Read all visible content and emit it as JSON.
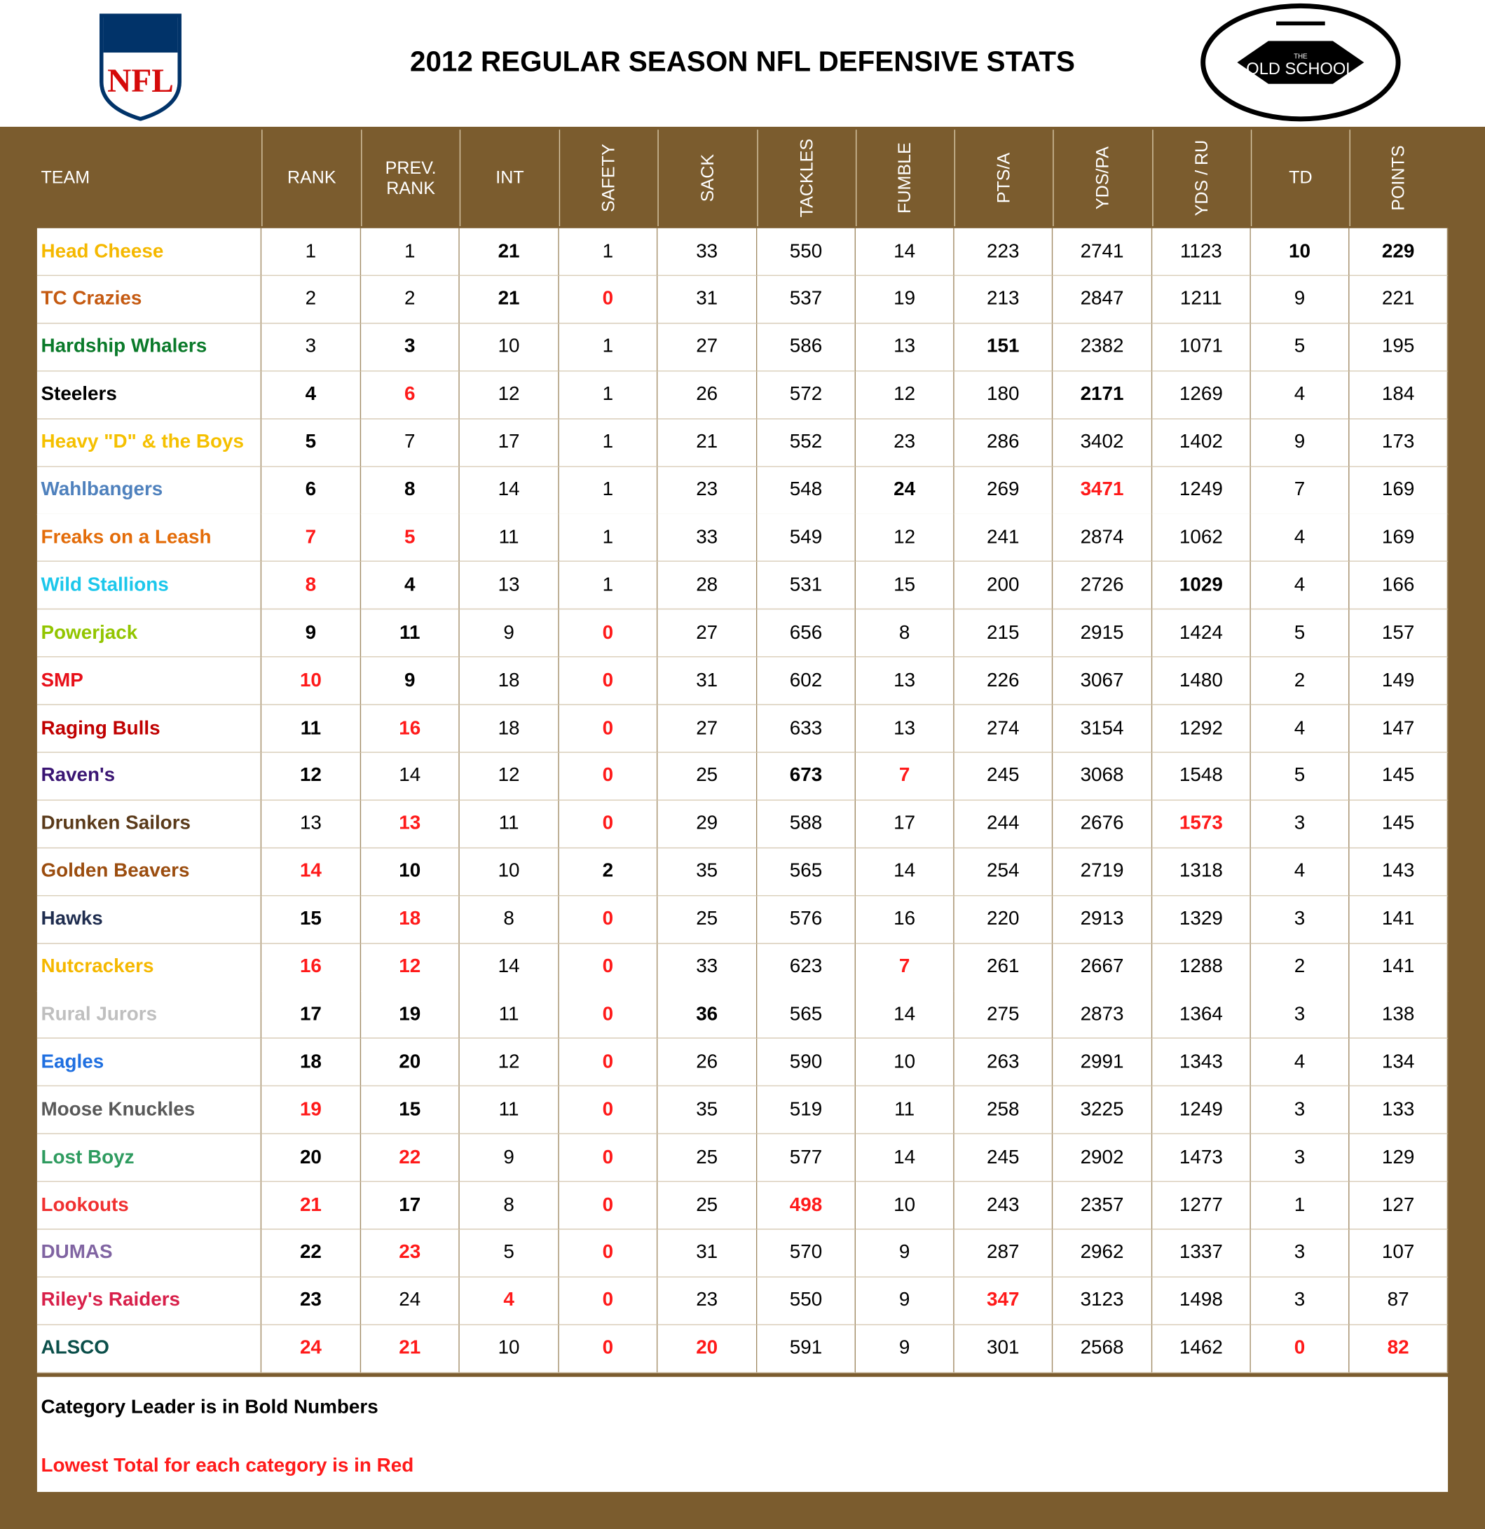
{
  "header": {
    "title": "2012 REGULAR SEASON NFL DEFENSIVE STATS",
    "nfl_logo": "NFL",
    "old_school_top": "THE",
    "old_school": "OLD SCHOOL"
  },
  "table": {
    "columns": [
      "TEAM",
      "RANK",
      "PREV. RANK",
      "INT",
      "SAFETY",
      "SACK",
      "TACKLES",
      "FUMBLE",
      "PTS/A",
      "YDS/PA",
      "YDS / RU",
      "TD",
      "POINTS"
    ],
    "rows": [
      {
        "team": "Head Cheese",
        "team_color": "#f5b800",
        "cells": [
          1,
          1,
          21,
          1,
          33,
          550,
          14,
          223,
          2741,
          1123,
          10,
          229
        ],
        "bold": [
          2,
          10,
          11
        ],
        "red": []
      },
      {
        "team": "TC Crazies",
        "team_color": "#c55a11",
        "cells": [
          2,
          2,
          21,
          0,
          31,
          537,
          19,
          213,
          2847,
          1211,
          9,
          221
        ],
        "bold": [
          2
        ],
        "red": [
          3
        ]
      },
      {
        "team": "Hardship Whalers",
        "team_color": "#0a7a2a",
        "cells": [
          3,
          3,
          10,
          1,
          27,
          586,
          13,
          151,
          2382,
          1071,
          5,
          195
        ],
        "bold": [
          1,
          7
        ],
        "red": []
      },
      {
        "team": "Steelers",
        "team_color": "#000000",
        "cells": [
          4,
          6,
          12,
          1,
          26,
          572,
          12,
          180,
          2171,
          1269,
          4,
          184
        ],
        "bold": [
          0,
          8
        ],
        "red": [
          1
        ]
      },
      {
        "team": "Heavy \"D\" & the Boys",
        "team_color": "#f5c000",
        "cells": [
          5,
          7,
          17,
          1,
          21,
          552,
          23,
          286,
          3402,
          1402,
          9,
          173
        ],
        "bold": [
          0
        ],
        "red": []
      },
      {
        "team": "Wahlbangers",
        "team_color": "#4f81bd",
        "cells": [
          6,
          8,
          14,
          1,
          23,
          548,
          24,
          269,
          3471,
          1249,
          7,
          169
        ],
        "bold": [
          0,
          1,
          6
        ],
        "red": [
          8
        ]
      },
      {
        "team": "Freaks on a Leash",
        "team_color": "#e36c09",
        "cells": [
          7,
          5,
          11,
          1,
          33,
          549,
          12,
          241,
          2874,
          1062,
          4,
          169
        ],
        "bold": [],
        "red": [
          0,
          1
        ]
      },
      {
        "team": "Wild Stallions",
        "team_color": "#1cc7eb",
        "cells": [
          8,
          4,
          13,
          1,
          28,
          531,
          15,
          200,
          2726,
          1029,
          4,
          166
        ],
        "bold": [
          1,
          9
        ],
        "red": [
          0
        ]
      },
      {
        "team": "Powerjack",
        "team_color": "#92c500",
        "cells": [
          9,
          11,
          9,
          0,
          27,
          656,
          8,
          215,
          2915,
          1424,
          5,
          157
        ],
        "bold": [
          0,
          1
        ],
        "red": [
          3
        ]
      },
      {
        "team": "SMP",
        "team_color": "#e8101a",
        "cells": [
          10,
          9,
          18,
          0,
          31,
          602,
          13,
          226,
          3067,
          1480,
          2,
          149
        ],
        "bold": [
          1
        ],
        "red": [
          0,
          3
        ]
      },
      {
        "team": "Raging Bulls",
        "team_color": "#c00000",
        "cells": [
          11,
          16,
          18,
          0,
          27,
          633,
          13,
          274,
          3154,
          1292,
          4,
          147
        ],
        "bold": [
          0
        ],
        "red": [
          1,
          3
        ]
      },
      {
        "team": "Raven's",
        "team_color": "#3a1573",
        "cells": [
          12,
          14,
          12,
          0,
          25,
          673,
          7,
          245,
          3068,
          1548,
          5,
          145
        ],
        "bold": [
          0,
          5
        ],
        "red": [
          3,
          6
        ]
      },
      {
        "team": "Drunken Sailors",
        "team_color": "#5a3a1a",
        "cells": [
          13,
          13,
          11,
          0,
          29,
          588,
          17,
          244,
          2676,
          1573,
          3,
          145
        ],
        "bold": [],
        "red": [
          1,
          3,
          9
        ]
      },
      {
        "team": "Golden Beavers",
        "team_color": "#9b4d0f",
        "cells": [
          14,
          10,
          10,
          2,
          35,
          565,
          14,
          254,
          2719,
          1318,
          4,
          143
        ],
        "bold": [
          1,
          3
        ],
        "red": [
          0
        ]
      },
      {
        "team": "Hawks",
        "team_color": "#1f2d4f",
        "cells": [
          15,
          18,
          8,
          0,
          25,
          576,
          16,
          220,
          2913,
          1329,
          3,
          141
        ],
        "bold": [
          0
        ],
        "red": [
          1,
          3
        ]
      },
      {
        "team": "Nutcrackers",
        "team_color": "#f5b800",
        "cells": [
          16,
          12,
          14,
          0,
          33,
          623,
          7,
          261,
          2667,
          1288,
          2,
          141
        ],
        "bold": [],
        "red": [
          0,
          1,
          3,
          6
        ]
      },
      {
        "team": "Rural Jurors",
        "team_color": "#bfbfbf",
        "cells": [
          17,
          19,
          11,
          0,
          36,
          565,
          14,
          275,
          2873,
          1364,
          3,
          138
        ],
        "bold": [
          0,
          1,
          4
        ],
        "red": [
          3
        ]
      },
      {
        "team": "Eagles",
        "team_color": "#1f6fe0",
        "cells": [
          18,
          20,
          12,
          0,
          26,
          590,
          10,
          263,
          2991,
          1343,
          4,
          134
        ],
        "bold": [
          0,
          1
        ],
        "red": [
          3
        ]
      },
      {
        "team": "Moose Knuckles",
        "team_color": "#595959",
        "cells": [
          19,
          15,
          11,
          0,
          35,
          519,
          11,
          258,
          3225,
          1249,
          3,
          133
        ],
        "bold": [
          1
        ],
        "red": [
          0,
          3
        ]
      },
      {
        "team": "Lost Boyz",
        "team_color": "#2e9b5f",
        "cells": [
          20,
          22,
          9,
          0,
          25,
          577,
          14,
          245,
          2902,
          1473,
          3,
          129
        ],
        "bold": [
          0
        ],
        "red": [
          1,
          3
        ]
      },
      {
        "team": "Lookouts",
        "team_color": "#f03030",
        "cells": [
          21,
          17,
          8,
          0,
          25,
          498,
          10,
          243,
          2357,
          1277,
          1,
          127
        ],
        "bold": [
          1
        ],
        "red": [
          0,
          3,
          5
        ]
      },
      {
        "team": "DUMAS",
        "team_color": "#8064a2",
        "cells": [
          22,
          23,
          5,
          0,
          31,
          570,
          9,
          287,
          2962,
          1337,
          3,
          107
        ],
        "bold": [
          0
        ],
        "red": [
          1,
          3
        ]
      },
      {
        "team": "Riley's Raiders",
        "team_color": "#d8204a",
        "cells": [
          23,
          24,
          4,
          0,
          23,
          550,
          9,
          347,
          3123,
          1498,
          3,
          87
        ],
        "bold": [
          0
        ],
        "red": [
          2,
          3,
          7
        ]
      },
      {
        "team": "ALSCO",
        "team_color": "#0b4f4a",
        "cells": [
          24,
          21,
          10,
          0,
          20,
          591,
          9,
          301,
          2568,
          1462,
          0,
          82
        ],
        "bold": [],
        "red": [
          0,
          1,
          3,
          4,
          10,
          11
        ]
      }
    ]
  },
  "footer": {
    "note_bold": "Category Leader is in Bold Numbers",
    "note_red": "Lowest Total for each category is in Red"
  }
}
